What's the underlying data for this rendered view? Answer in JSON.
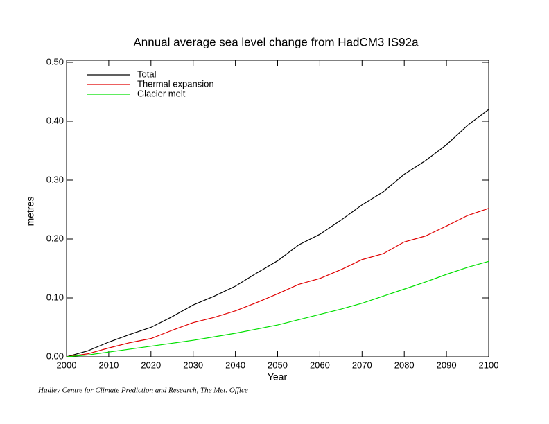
{
  "chart_data": {
    "type": "line",
    "title": "Annual average sea level change from HadCM3 IS92a",
    "x_label": "Year",
    "y_label": "metres",
    "source": "Hadley Centre for Climate Prediction and Research, The Met. Office",
    "x": [
      2000,
      2005,
      2010,
      2015,
      2020,
      2025,
      2030,
      2035,
      2040,
      2045,
      2050,
      2055,
      2060,
      2065,
      2070,
      2075,
      2080,
      2085,
      2090,
      2095,
      2100
    ],
    "series": [
      {
        "name": "Total",
        "color": "#000000",
        "values": [
          0,
          0.01,
          0.025,
          0.038,
          0.05,
          0.068,
          0.088,
          0.103,
          0.12,
          0.142,
          0.163,
          0.19,
          0.208,
          0.232,
          0.258,
          0.28,
          0.31,
          0.333,
          0.36,
          0.393,
          0.42
        ]
      },
      {
        "name": "Thermal expansion",
        "color": "#e00000",
        "values": [
          0,
          0.005,
          0.015,
          0.024,
          0.031,
          0.045,
          0.058,
          0.067,
          0.078,
          0.092,
          0.107,
          0.123,
          0.133,
          0.148,
          0.165,
          0.175,
          0.195,
          0.205,
          0.222,
          0.24,
          0.252
        ]
      },
      {
        "name": "Glacier melt",
        "color": "#00e000",
        "values": [
          0,
          0.003,
          0.008,
          0.013,
          0.018,
          0.023,
          0.028,
          0.034,
          0.04,
          0.047,
          0.054,
          0.063,
          0.072,
          0.081,
          0.091,
          0.103,
          0.115,
          0.127,
          0.14,
          0.152,
          0.162
        ]
      }
    ],
    "xlim": [
      2000,
      2100
    ],
    "xticks": [
      2000,
      2010,
      2020,
      2030,
      2040,
      2050,
      2060,
      2070,
      2080,
      2090,
      2100
    ],
    "ylim": [
      0,
      0.5
    ],
    "yticks": [
      {
        "value": 0,
        "label": "0.00"
      },
      {
        "value": 0.1,
        "label": "0.10"
      },
      {
        "value": 0.2,
        "label": "0.20"
      },
      {
        "value": 0.3,
        "label": "0.30"
      },
      {
        "value": 0.4,
        "label": "0.40"
      },
      {
        "value": 0.5,
        "label": "0.50"
      }
    ],
    "legend": "upper left",
    "grid": false
  }
}
